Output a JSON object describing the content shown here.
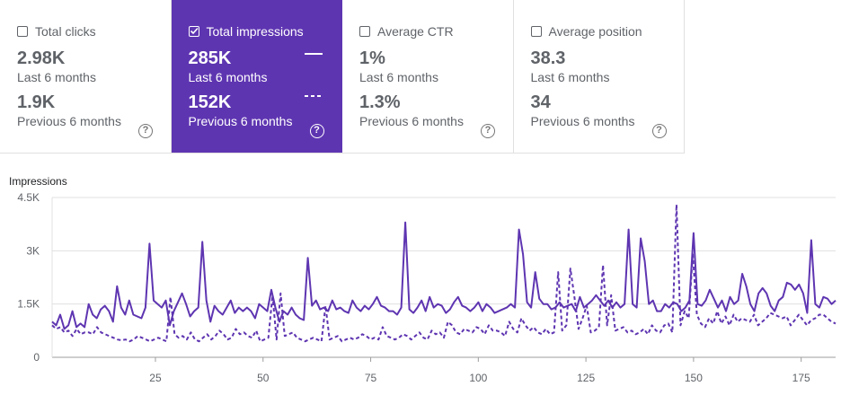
{
  "cards": [
    {
      "label": "Total clicks",
      "checked": false,
      "current": "2.98K",
      "current_caption": "Last 6 months",
      "previous": "1.9K",
      "previous_caption": "Previous 6 months",
      "help": "?"
    },
    {
      "label": "Total impressions",
      "checked": true,
      "current": "285K",
      "current_caption": "Last 6 months",
      "previous": "152K",
      "previous_caption": "Previous 6 months",
      "help": "?"
    },
    {
      "label": "Average CTR",
      "checked": false,
      "current": "1%",
      "current_caption": "Last 6 months",
      "previous": "1.3%",
      "previous_caption": "Previous 6 months",
      "help": "?"
    },
    {
      "label": "Average position",
      "checked": false,
      "current": "38.3",
      "current_caption": "Last 6 months",
      "previous": "34",
      "previous_caption": "Previous 6 months",
      "help": "?"
    }
  ],
  "colors": {
    "accent": "#5e35b1",
    "line": "#5e35b1"
  },
  "chart_data": {
    "type": "line",
    "ylabel": "Impressions",
    "ylim": [
      0,
      4500
    ],
    "yticks": [
      {
        "v": 0,
        "label": "0"
      },
      {
        "v": 1500,
        "label": "1.5K"
      },
      {
        "v": 3000,
        "label": "3K"
      },
      {
        "v": 4500,
        "label": "4.5K"
      }
    ],
    "xlim": [
      1,
      183
    ],
    "xticks": [
      25,
      50,
      75,
      100,
      125,
      150,
      175
    ],
    "series": [
      {
        "style": "solid",
        "values": [
          1000,
          900,
          1200,
          800,
          900,
          1300,
          850,
          950,
          850,
          1500,
          1200,
          1100,
          1350,
          1450,
          1300,
          1000,
          2000,
          1400,
          1200,
          1600,
          1200,
          1150,
          1100,
          1400,
          3200,
          1600,
          1500,
          1400,
          1600,
          900,
          1300,
          1550,
          1800,
          1500,
          1150,
          1300,
          1400,
          3250,
          1600,
          1000,
          1450,
          1300,
          1200,
          1400,
          1600,
          1250,
          1400,
          1300,
          1400,
          1300,
          1100,
          1500,
          1400,
          1300,
          1900,
          1400,
          1000,
          1300,
          1200,
          1400,
          1200,
          1100,
          1050,
          2800,
          1450,
          1600,
          1350,
          1400,
          1300,
          1600,
          1350,
          1400,
          1300,
          1250,
          1600,
          1400,
          1300,
          1450,
          1350,
          1500,
          1700,
          1450,
          1400,
          1300,
          1300,
          1200,
          1400,
          3800,
          1350,
          1250,
          1400,
          1600,
          1300,
          1700,
          1400,
          1500,
          1450,
          1250,
          1350,
          1550,
          1700,
          1450,
          1400,
          1300,
          1400,
          1550,
          1300,
          1500,
          1400,
          1250,
          1300,
          1350,
          1400,
          1500,
          1400,
          3600,
          2900,
          1550,
          1400,
          2400,
          1650,
          1500,
          1500,
          1350,
          1400,
          1550,
          1400,
          1450,
          1500,
          1300,
          1700,
          1400,
          1500,
          1600,
          1750,
          1600,
          1450,
          1600,
          1400,
          1550,
          1400,
          1500,
          3600,
          1500,
          1400,
          3350,
          2700,
          1500,
          1600,
          1300,
          1300,
          1500,
          1400,
          1550,
          1500,
          1300,
          1400,
          1600,
          3500,
          1500,
          1450,
          1600,
          1900,
          1650,
          1400,
          1600,
          1300,
          1700,
          1500,
          1600,
          2350,
          2000,
          1500,
          1300,
          1800,
          1950,
          1800,
          1450,
          1300,
          1600,
          1700,
          2100,
          2050,
          1900,
          2050,
          1800,
          1250,
          3300,
          1500,
          1400,
          1700,
          1650,
          1500,
          1600
        ]
      },
      {
        "style": "dashed",
        "values": [
          900,
          800,
          850,
          700,
          750,
          600,
          800,
          650,
          700,
          700,
          650,
          850,
          700,
          650,
          600,
          550,
          500,
          480,
          500,
          450,
          500,
          600,
          550,
          500,
          450,
          500,
          550,
          500,
          450,
          1700,
          650,
          550,
          600,
          500,
          700,
          500,
          450,
          550,
          650,
          500,
          600,
          750,
          650,
          500,
          550,
          800,
          650,
          700,
          600,
          550,
          750,
          450,
          500,
          550,
          1750,
          500,
          1800,
          600,
          650,
          700,
          550,
          500,
          450,
          500,
          550,
          500,
          450,
          1450,
          500,
          550,
          600,
          450,
          500,
          550,
          500,
          550,
          650,
          600,
          500,
          550,
          500,
          850,
          600,
          550,
          500,
          550,
          650,
          600,
          500,
          600,
          700,
          550,
          500,
          750,
          650,
          700,
          550,
          1000,
          900,
          700,
          650,
          800,
          750,
          700,
          850,
          800,
          650,
          900,
          750,
          750,
          700,
          600,
          1000,
          800,
          700,
          1100,
          900,
          750,
          850,
          700,
          650,
          800,
          650,
          700,
          2400,
          750,
          900,
          2500,
          1700,
          800,
          1100,
          1450,
          700,
          750,
          850,
          2600,
          900,
          1750,
          750,
          800,
          850,
          700,
          750,
          650,
          700,
          800,
          650,
          900,
          750,
          700,
          900,
          950,
          700,
          4300,
          900,
          1300,
          1100,
          2900,
          1200,
          950,
          850,
          1100,
          950,
          1300,
          950,
          1150,
          900,
          1200,
          1000,
          1100,
          1050,
          1000,
          1200,
          900,
          1000,
          1100,
          1250,
          1200,
          1150,
          1100,
          1150,
          900,
          1050,
          1200,
          1050,
          900,
          1050,
          1100,
          1200,
          1200,
          1100,
          1000,
          950
        ]
      }
    ]
  }
}
